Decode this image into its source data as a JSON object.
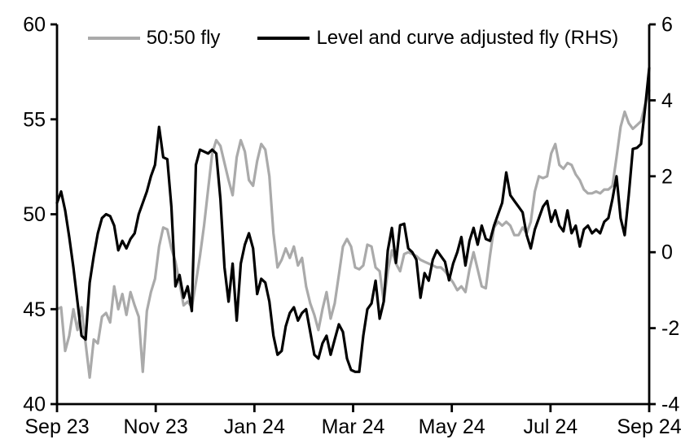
{
  "chart_data": {
    "type": "line",
    "title": "",
    "x_axis": {
      "tick_labels": [
        "Sep 23",
        "Nov 23",
        "Jan 24",
        "Mar 24",
        "May 24",
        "Jul 24",
        "Sep 24"
      ]
    },
    "left_axis": {
      "min": 40,
      "max": 60,
      "ticks": [
        "40",
        "45",
        "50",
        "55",
        "60"
      ]
    },
    "right_axis": {
      "min": -4,
      "max": 6,
      "ticks": [
        "-4",
        "-2",
        "0",
        "2",
        "4",
        "6"
      ]
    },
    "grid": false,
    "legend_position": "top-center",
    "colors": {
      "gray_series": "#aaaaaa",
      "black_series": "#000000",
      "axis": "#000000"
    },
    "legend": [
      {
        "label": "50:50 fly",
        "color": "#aaaaaa"
      },
      {
        "label": "Level and curve adjusted fly (RHS)",
        "color": "#000000"
      }
    ],
    "series": [
      {
        "name": "50:50 fly",
        "axis": "left",
        "color": "#aaaaaa",
        "values": [
          45.0,
          45.1,
          42.8,
          43.6,
          45.0,
          43.9,
          45.1,
          43.2,
          41.4,
          43.4,
          43.2,
          44.6,
          44.8,
          44.3,
          46.2,
          45.0,
          45.8,
          44.7,
          45.9,
          45.2,
          44.6,
          41.7,
          44.9,
          45.9,
          46.6,
          48.3,
          49.3,
          49.2,
          48.2,
          47.5,
          46.4,
          45.2,
          45.4,
          45.1,
          46.4,
          47.8,
          49.4,
          51.3,
          53.2,
          53.9,
          53.6,
          52.7,
          51.8,
          51.0,
          53.0,
          53.9,
          53.3,
          51.8,
          51.5,
          52.8,
          53.7,
          53.4,
          52.0,
          49.0,
          47.2,
          47.6,
          48.2,
          47.7,
          48.3,
          47.3,
          47.7,
          46.2,
          45.3,
          44.7,
          43.9,
          45.0,
          45.9,
          44.5,
          45.3,
          46.8,
          48.3,
          48.7,
          48.3,
          47.2,
          47.1,
          47.3,
          48.4,
          48.3,
          47.2,
          47.0,
          45.4,
          47.0,
          48.1,
          47.4,
          47.0,
          47.9,
          48.0,
          47.9,
          47.8,
          47.6,
          47.5,
          47.4,
          47.3,
          47.2,
          47.2,
          47.0,
          46.7,
          46.4,
          46.0,
          46.2,
          45.9,
          47.1,
          48.0,
          47.1,
          46.2,
          46.1,
          47.8,
          49.3,
          49.6,
          49.4,
          49.6,
          49.4,
          48.9,
          48.9,
          49.3,
          49.0,
          49.6,
          51.2,
          52.0,
          51.9,
          52.0,
          53.2,
          53.7,
          52.6,
          52.4,
          52.7,
          52.6,
          52.1,
          51.8,
          51.3,
          51.1,
          51.1,
          51.2,
          51.1,
          51.3,
          51.3,
          51.5,
          53.0,
          54.6,
          55.4,
          54.8,
          54.5,
          54.7,
          54.9,
          55.8,
          56.5
        ]
      },
      {
        "name": "Level and curve adjusted fly (RHS)",
        "axis": "right",
        "color": "#000000",
        "values": [
          1.3,
          1.6,
          1.1,
          0.4,
          -0.4,
          -1.3,
          -2.2,
          -2.3,
          -0.8,
          -0.1,
          0.5,
          0.9,
          1.0,
          0.95,
          0.7,
          0.05,
          0.3,
          0.1,
          0.35,
          0.5,
          1.0,
          1.3,
          1.6,
          2.0,
          2.3,
          3.3,
          2.5,
          2.45,
          1.2,
          -0.9,
          -0.6,
          -1.2,
          -0.9,
          -1.55,
          2.3,
          2.7,
          2.65,
          2.6,
          2.7,
          2.6,
          1.4,
          -0.4,
          -1.3,
          -0.3,
          -1.8,
          -0.3,
          0.2,
          0.5,
          0.1,
          -1.1,
          -0.7,
          -0.8,
          -1.3,
          -2.2,
          -2.7,
          -2.6,
          -1.95,
          -1.6,
          -1.45,
          -1.8,
          -1.6,
          -1.5,
          -2.1,
          -2.7,
          -2.8,
          -2.4,
          -2.2,
          -2.7,
          -2.3,
          -1.9,
          -2.1,
          -2.8,
          -3.1,
          -3.15,
          -3.15,
          -2.2,
          -1.5,
          -1.35,
          -0.75,
          -1.75,
          -1.3,
          0.05,
          0.64,
          -0.28,
          0.71,
          0.75,
          0.1,
          0.0,
          -0.2,
          -1.2,
          -0.55,
          -0.75,
          -0.2,
          0.05,
          -0.1,
          -0.25,
          -0.74,
          -0.3,
          0.0,
          0.4,
          -0.35,
          0.3,
          0.64,
          0.2,
          0.7,
          0.35,
          0.3,
          0.7,
          1.0,
          1.3,
          2.1,
          1.5,
          1.35,
          1.2,
          1.05,
          0.45,
          0.1,
          0.6,
          0.9,
          1.2,
          1.35,
          0.8,
          1.1,
          0.7,
          0.55,
          1.1,
          0.5,
          0.7,
          0.15,
          0.6,
          0.7,
          0.5,
          0.6,
          0.5,
          0.8,
          0.9,
          1.4,
          2.0,
          0.9,
          0.45,
          1.5,
          2.72,
          2.75,
          2.85,
          3.8,
          4.85
        ]
      }
    ]
  }
}
